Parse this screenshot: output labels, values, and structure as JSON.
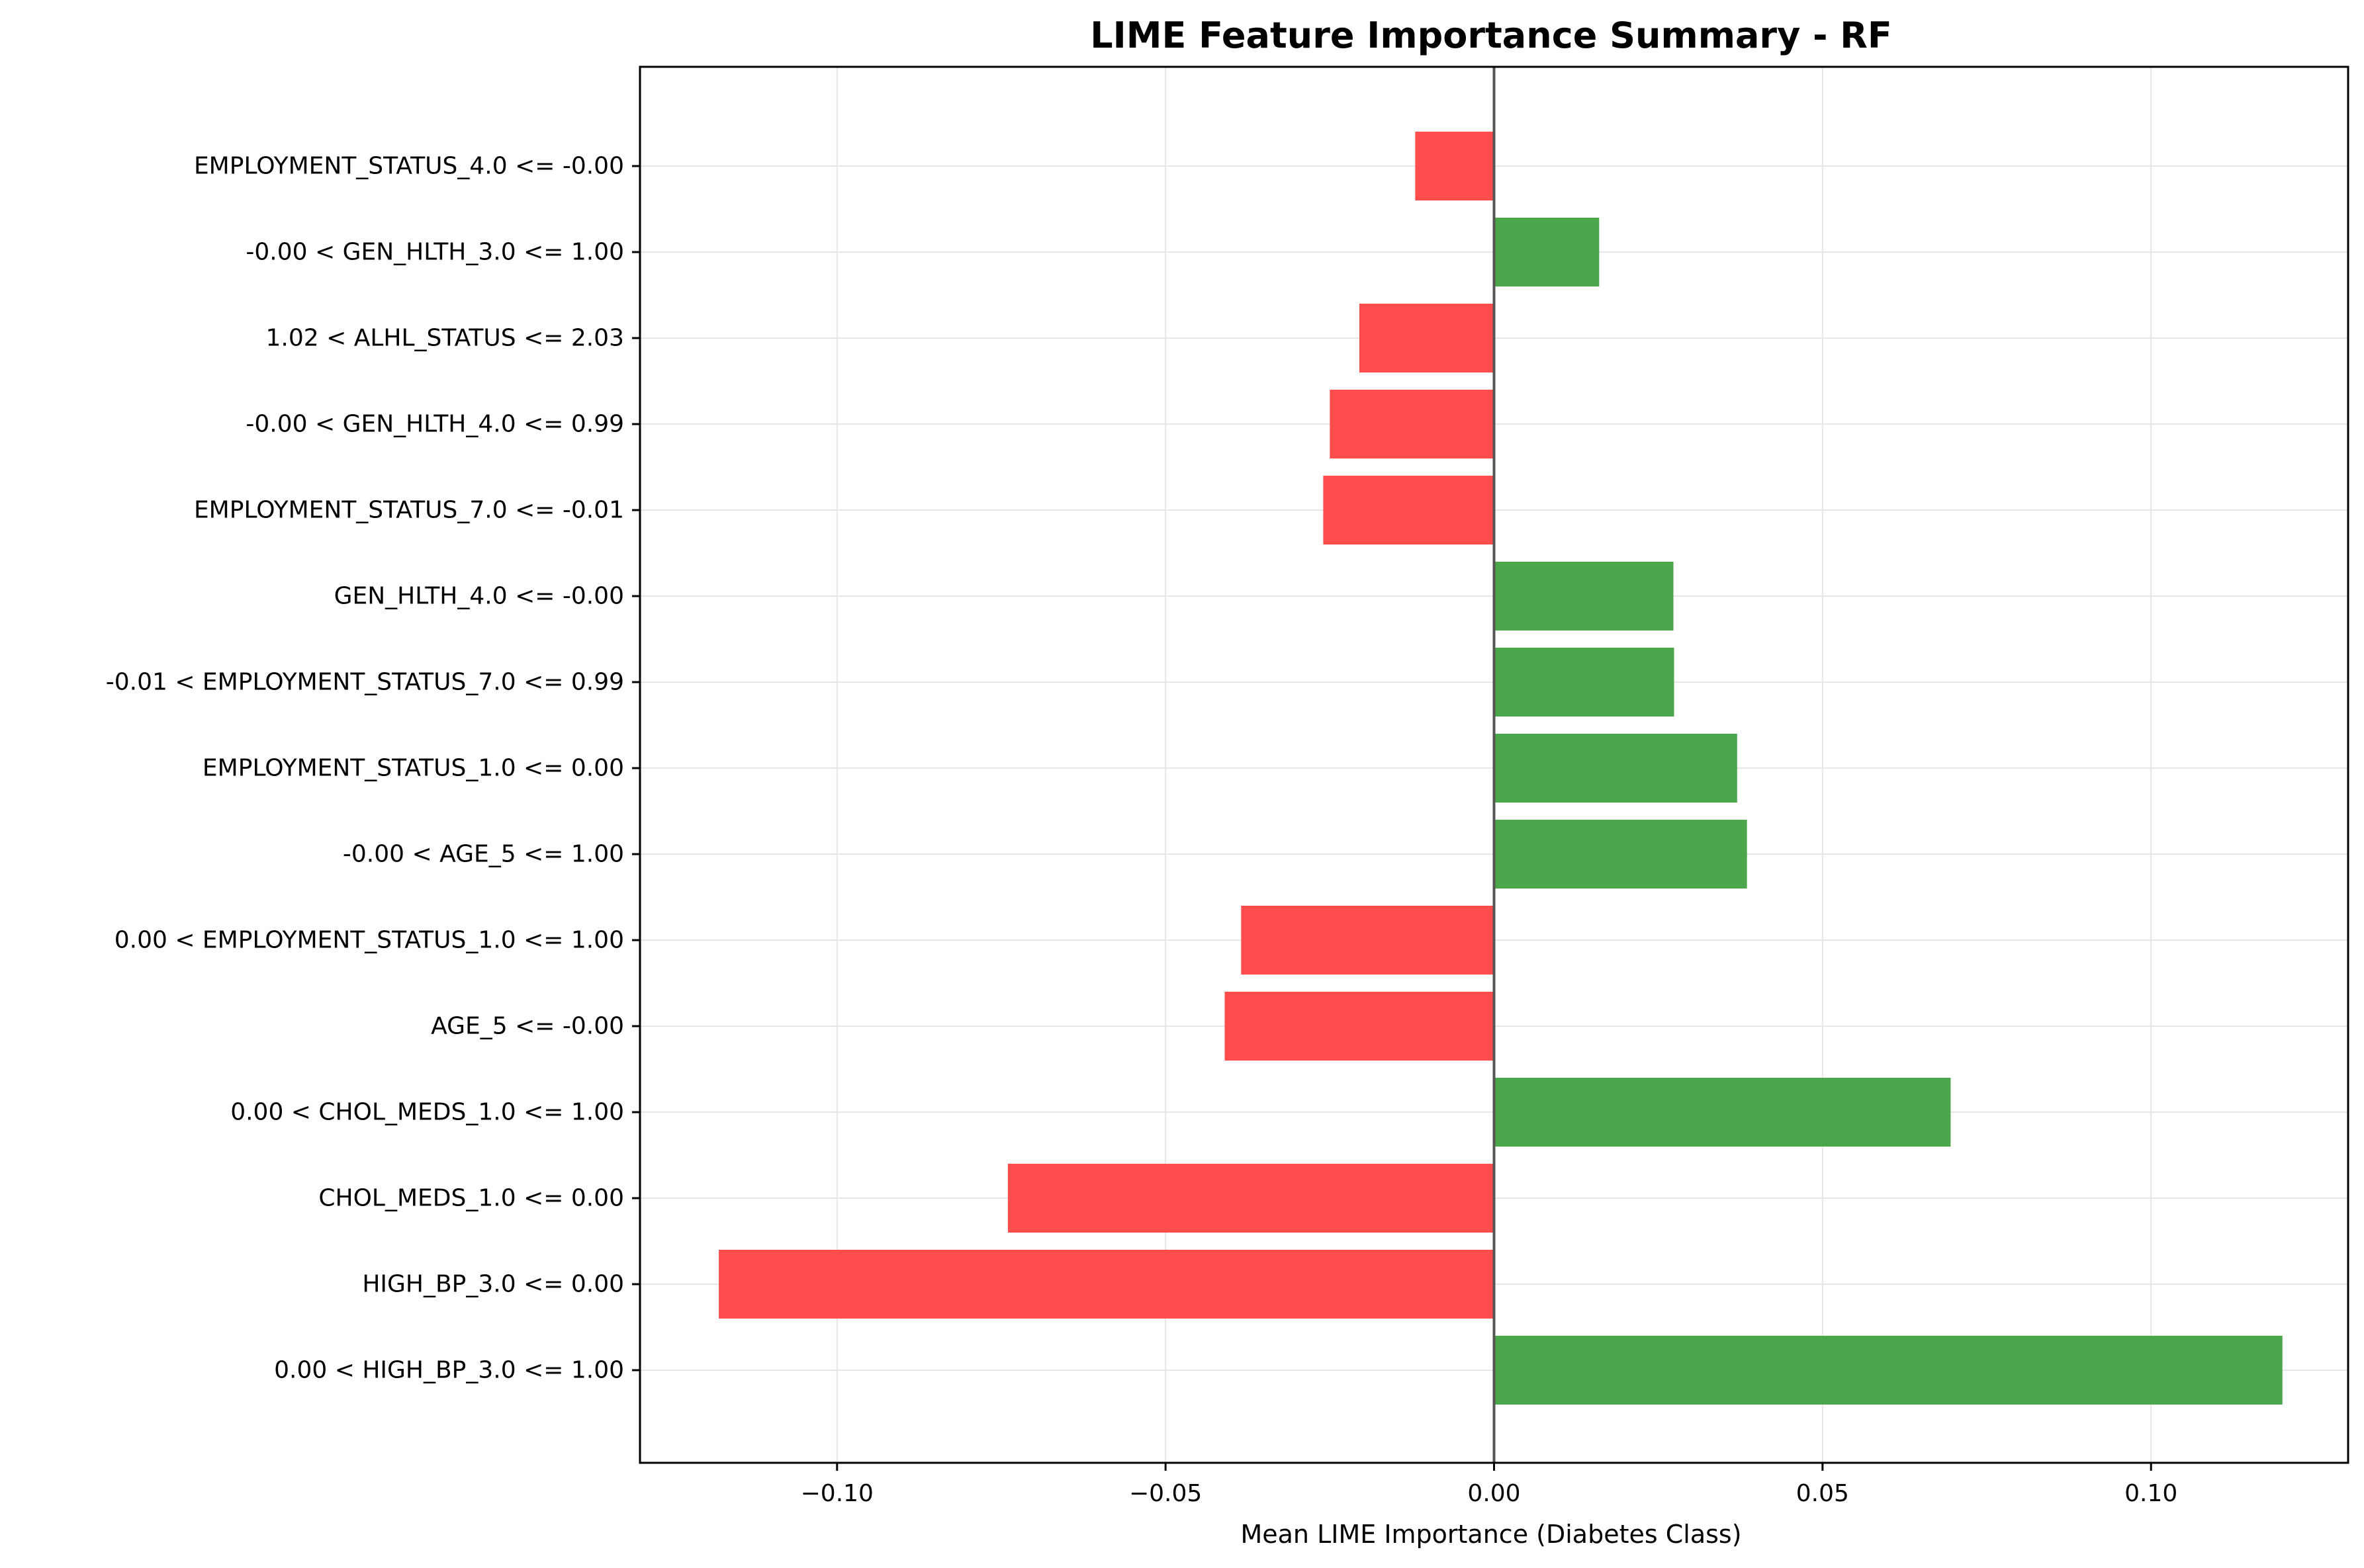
{
  "chart_data": {
    "type": "bar",
    "orientation": "horizontal",
    "title": "LIME Feature Importance Summary - RF",
    "xlabel": "Mean LIME Importance (Diabetes Class)",
    "ylabel": "",
    "xlim": [
      -0.13,
      0.13
    ],
    "xticks": [
      -0.1,
      -0.05,
      0.0,
      0.05,
      0.1
    ],
    "xtick_labels": [
      "−0.10",
      "−0.05",
      "0.00",
      "0.05",
      "0.10"
    ],
    "grid": true,
    "positive_color": "#4ca64c",
    "negative_color": "#ff4c4c",
    "categories": [
      "EMPLOYMENT_STATUS_4.0 <= -0.00",
      "-0.00 < GEN_HLTH_3.0 <= 1.00",
      "1.02 < ALHL_STATUS <= 2.03",
      "-0.00 < GEN_HLTH_4.0 <= 0.99",
      "EMPLOYMENT_STATUS_7.0 <= -0.01",
      "GEN_HLTH_4.0 <= -0.00",
      "-0.01 < EMPLOYMENT_STATUS_7.0 <= 0.99",
      "EMPLOYMENT_STATUS_1.0 <= 0.00",
      "-0.00 < AGE_5 <= 1.00",
      "0.00 < EMPLOYMENT_STATUS_1.0 <= 1.00",
      "AGE_5 <= -0.00",
      "0.00 < CHOL_MEDS_1.0 <= 1.00",
      "CHOL_MEDS_1.0 <= 0.00",
      "HIGH_BP_3.0 <= 0.00",
      "0.00 < HIGH_BP_3.0 <= 1.00"
    ],
    "values": [
      -0.012,
      0.016,
      -0.0205,
      -0.025,
      -0.026,
      0.0273,
      0.0274,
      0.037,
      0.0385,
      -0.0385,
      -0.041,
      0.0695,
      -0.074,
      -0.118,
      0.12
    ]
  }
}
